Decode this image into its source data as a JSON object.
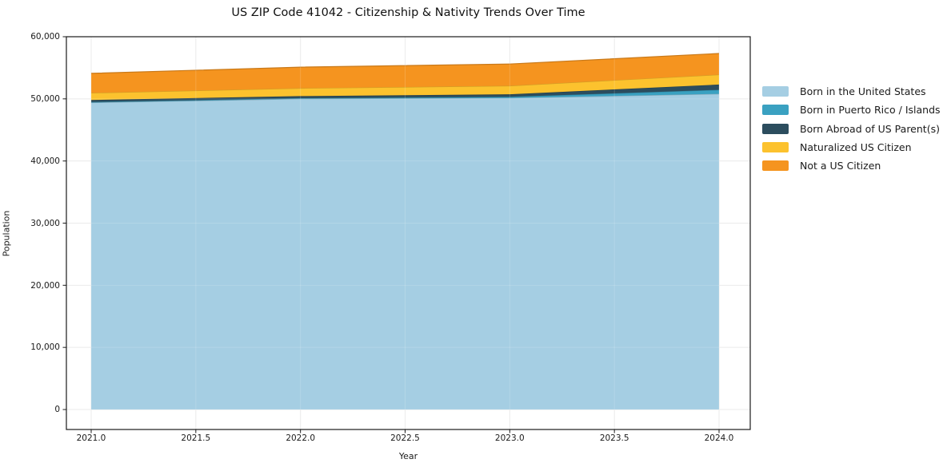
{
  "figure": {
    "background": "#ffffff"
  },
  "chart_data": {
    "type": "area",
    "stacked": true,
    "title": "US ZIP Code 41042 - Citizenship & Nativity Trends Over Time",
    "xlabel": "Year",
    "ylabel": "Population",
    "x": [
      2021,
      2022,
      2023,
      2024
    ],
    "series": [
      {
        "name": "Born in the United States",
        "color": "#a5cee3",
        "values": [
          49400,
          50000,
          50150,
          50800
        ]
      },
      {
        "name": "Born in Puerto Rico / Islands",
        "color": "#3aa1c1",
        "values": [
          90,
          110,
          170,
          650
        ]
      },
      {
        "name": "Born Abroad of US Parent(s)",
        "color": "#2c4d5e",
        "values": [
          320,
          330,
          420,
          850
        ]
      },
      {
        "name": "Naturalized US Citizen",
        "color": "#fcc22e",
        "values": [
          1140,
          1270,
          1360,
          1600
        ]
      },
      {
        "name": "Not a US Citizen",
        "color": "#f5941f",
        "values": [
          3150,
          3390,
          3500,
          3400
        ]
      }
    ],
    "stack_totals": [
      54100,
      55100,
      55600,
      57300
    ],
    "xticks": {
      "values": [
        2021.0,
        2021.5,
        2022.0,
        2022.5,
        2023.0,
        2023.5,
        2024.0
      ],
      "labels": [
        "2021.0",
        "2021.5",
        "2022.0",
        "2022.5",
        "2023.0",
        "2023.5",
        "2024.0"
      ]
    },
    "yticks": {
      "values": [
        0,
        10000,
        20000,
        30000,
        40000,
        50000,
        60000
      ],
      "labels": [
        "0",
        "10,000",
        "20,000",
        "30,000",
        "40,000",
        "50,000",
        "60,000"
      ]
    },
    "xlim": [
      2021,
      2024
    ],
    "ylim": [
      0,
      60000
    ],
    "grid": true,
    "axis_color": "#1a1a1a",
    "grid_color": "#e7e7e7",
    "legend": {
      "position": "right",
      "frame": false
    }
  }
}
